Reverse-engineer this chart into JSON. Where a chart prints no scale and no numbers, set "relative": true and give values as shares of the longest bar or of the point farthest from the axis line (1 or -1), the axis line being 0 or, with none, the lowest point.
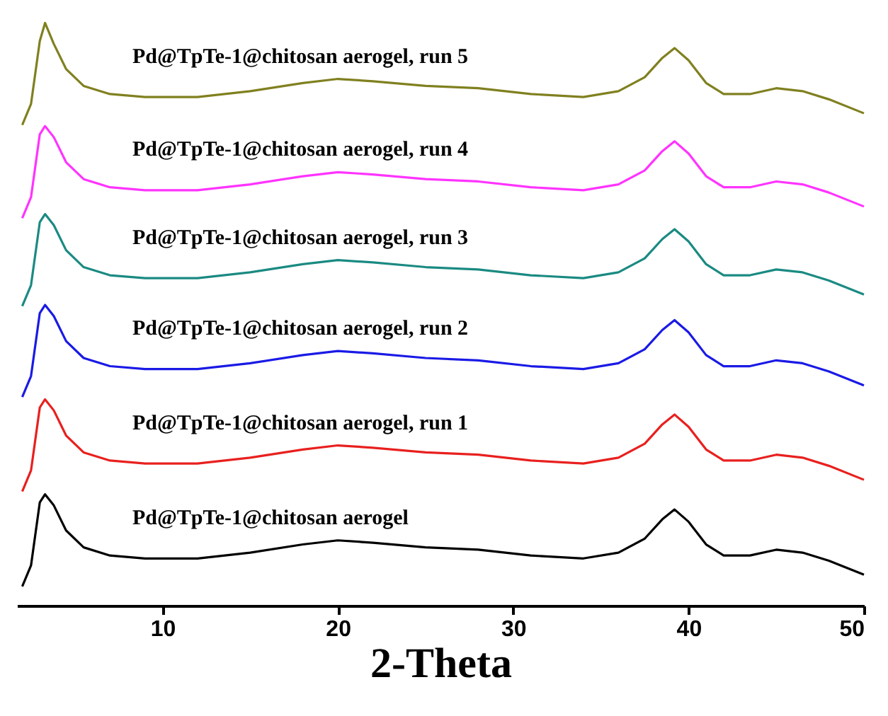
{
  "chart_data": {
    "type": "line",
    "relative": true,
    "xlabel": "2-Theta",
    "xlim": [
      1.7,
      50
    ],
    "xticks": [
      10,
      20,
      30,
      40,
      50
    ],
    "grid": false,
    "legend": false,
    "marker": "none",
    "line_style": "solid",
    "x": [
      2,
      2.5,
      3,
      3.3,
      3.8,
      4.5,
      5.5,
      7,
      9,
      12,
      15,
      18,
      20,
      22,
      25,
      28,
      31,
      34,
      36,
      37.5,
      38.5,
      39.2,
      40,
      41,
      42,
      43.5,
      45,
      46.5,
      48,
      50
    ],
    "series": [
      {
        "name": "Pd@TpTe-1@chitosan aerogel",
        "color": "#000000",
        "values": [
          0.033,
          0.069,
          0.177,
          0.191,
          0.172,
          0.129,
          0.1,
          0.086,
          0.081,
          0.081,
          0.091,
          0.105,
          0.112,
          0.108,
          0.1,
          0.096,
          0.086,
          0.081,
          0.091,
          0.115,
          0.148,
          0.165,
          0.144,
          0.105,
          0.086,
          0.086,
          0.096,
          0.091,
          0.077,
          0.053
        ]
      },
      {
        "name": "Pd@TpTe-1@chitosan aerogel, run 1",
        "color": "#e8201e",
        "values": [
          0.196,
          0.232,
          0.34,
          0.354,
          0.335,
          0.292,
          0.263,
          0.249,
          0.244,
          0.244,
          0.254,
          0.268,
          0.275,
          0.271,
          0.263,
          0.259,
          0.249,
          0.244,
          0.254,
          0.278,
          0.311,
          0.328,
          0.307,
          0.268,
          0.249,
          0.249,
          0.259,
          0.254,
          0.24,
          0.216
        ]
      },
      {
        "name": "Pd@TpTe-1@chitosan aerogel, run 2",
        "color": "#1a1ae6",
        "values": [
          0.358,
          0.394,
          0.502,
          0.516,
          0.497,
          0.454,
          0.425,
          0.411,
          0.406,
          0.406,
          0.416,
          0.43,
          0.437,
          0.433,
          0.425,
          0.421,
          0.411,
          0.406,
          0.416,
          0.44,
          0.473,
          0.49,
          0.469,
          0.43,
          0.411,
          0.411,
          0.421,
          0.416,
          0.402,
          0.378
        ]
      },
      {
        "name": "Pd@TpTe-1@chitosan aerogel, run 3",
        "color": "#1a8a82",
        "values": [
          0.514,
          0.55,
          0.658,
          0.672,
          0.653,
          0.61,
          0.581,
          0.567,
          0.562,
          0.562,
          0.572,
          0.586,
          0.593,
          0.589,
          0.581,
          0.577,
          0.567,
          0.562,
          0.572,
          0.596,
          0.629,
          0.646,
          0.625,
          0.586,
          0.567,
          0.567,
          0.577,
          0.572,
          0.558,
          0.534
        ]
      },
      {
        "name": "Pd@TpTe-1@chitosan aerogel, run 4",
        "color": "#ff33ff",
        "values": [
          0.665,
          0.701,
          0.809,
          0.823,
          0.804,
          0.761,
          0.732,
          0.718,
          0.713,
          0.713,
          0.723,
          0.737,
          0.744,
          0.74,
          0.732,
          0.728,
          0.718,
          0.713,
          0.723,
          0.747,
          0.78,
          0.797,
          0.776,
          0.737,
          0.718,
          0.718,
          0.728,
          0.723,
          0.709,
          0.685
        ]
      },
      {
        "name": "Pd@TpTe-1@chitosan aerogel, run 5",
        "color": "#808020",
        "values": [
          0.825,
          0.861,
          0.969,
          1,
          0.964,
          0.921,
          0.892,
          0.878,
          0.873,
          0.873,
          0.883,
          0.897,
          0.904,
          0.9,
          0.892,
          0.888,
          0.878,
          0.873,
          0.883,
          0.907,
          0.94,
          0.957,
          0.936,
          0.897,
          0.878,
          0.878,
          0.888,
          0.883,
          0.869,
          0.845
        ]
      }
    ]
  }
}
